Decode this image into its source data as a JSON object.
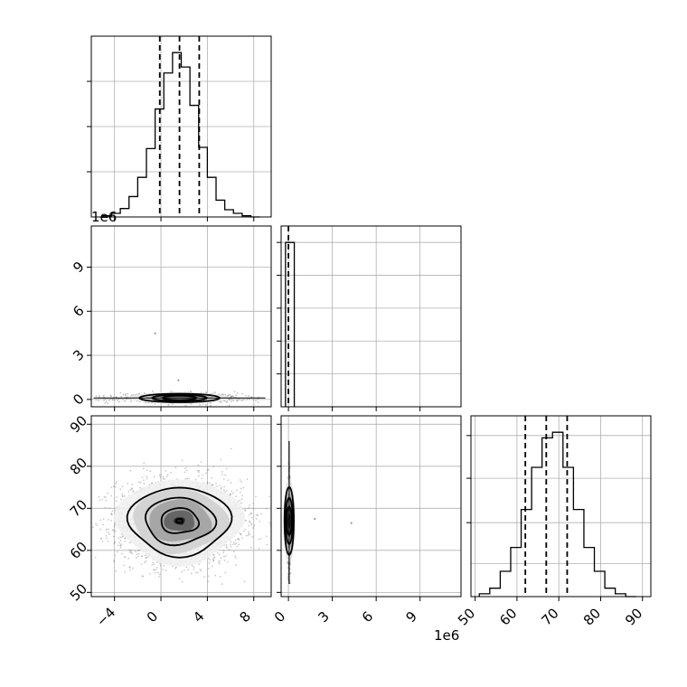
{
  "chart_data": {
    "type": "corner",
    "title": "",
    "parameters": [
      {
        "index": 0,
        "xlim": [
          -6,
          9.5
        ],
        "ticks": [
          -4,
          0,
          4,
          8
        ],
        "tick_labels": [
          "−4",
          "0",
          "4",
          "8"
        ],
        "quantiles": [
          -0.1,
          1.6,
          3.3
        ],
        "histogram": {
          "edges": [
            -5,
            -4.25,
            -3.5,
            -2.75,
            -2,
            -1.25,
            -0.5,
            0.25,
            1,
            1.75,
            2.5,
            3.25,
            4,
            4.75,
            5.5,
            6.25,
            7,
            7.75,
            8.5
          ],
          "counts": [
            1,
            3,
            7,
            17,
            33,
            57,
            90,
            120,
            137,
            125,
            93,
            58,
            33,
            14,
            6,
            3,
            1,
            0
          ]
        }
      },
      {
        "index": 1,
        "xlim": [
          -0.5,
          11.8
        ],
        "ylim": [
          -0.5,
          11.8
        ],
        "ticks": [
          0,
          3,
          6,
          9
        ],
        "tick_labels": [
          "0",
          "3",
          "6",
          "9"
        ],
        "offset_label": "1e6",
        "quantiles": [
          0.0
        ],
        "histogram": {
          "edges": [
            -0.2,
            0.4
          ],
          "counts": [
            1
          ]
        }
      },
      {
        "index": 2,
        "xlim": [
          49,
          92
        ],
        "ylim": [
          49,
          92
        ],
        "ticks": [
          50,
          60,
          70,
          80,
          90
        ],
        "tick_labels": [
          "50",
          "60",
          "70",
          "80",
          "90"
        ],
        "quantiles": [
          62,
          67,
          72
        ],
        "histogram": {
          "edges": [
            51,
            53.5,
            56,
            58.5,
            61,
            63.5,
            66,
            68.5,
            71,
            73.5,
            76,
            78.5,
            81,
            83.5,
            86,
            88.5
          ],
          "counts": [
            2,
            6,
            18,
            35,
            62,
            92,
            113,
            117,
            92,
            62,
            35,
            18,
            6,
            2,
            0
          ]
        }
      }
    ],
    "pair_0_2": {
      "center": [
        1.6,
        67
      ],
      "sigma": [
        2.7,
        5
      ],
      "contour_levels": [
        0.5,
        1.0,
        1.5,
        2.0
      ]
    },
    "pair_0_1": {
      "center": [
        1.6,
        0.1
      ],
      "sigma": [
        2.6,
        0.15
      ],
      "outliers": [
        [
          -0.5,
          4.5
        ],
        [
          1.5,
          1.3
        ]
      ]
    },
    "pair_1_2": {
      "center": [
        0.05,
        67
      ],
      "sigma": [
        0.05,
        5
      ],
      "outliers": [
        [
          1.8,
          67.5
        ],
        [
          4.3,
          66.5
        ]
      ]
    }
  }
}
